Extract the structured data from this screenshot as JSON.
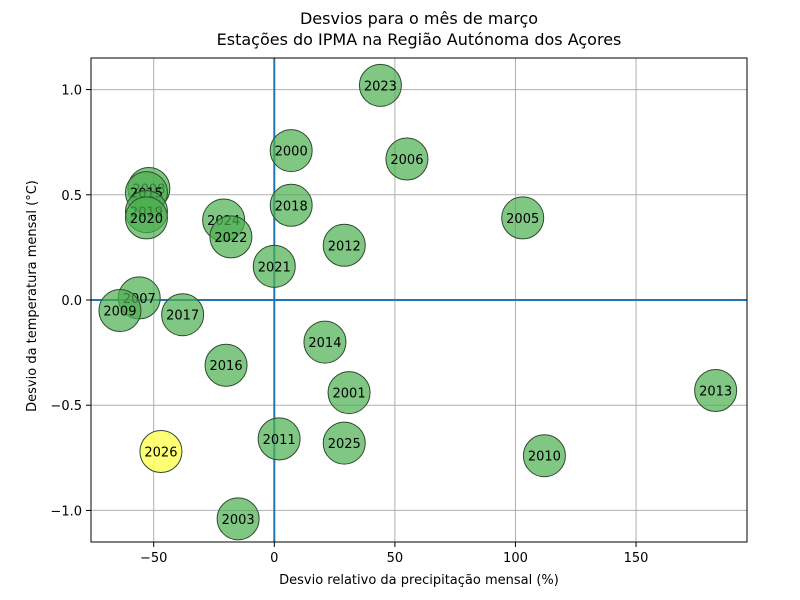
{
  "chart_data": {
    "type": "scatter",
    "title": "Desvios para o mês de março",
    "subtitle": "Estações do IPMA na Região Autónoma dos Açores",
    "xlabel": "Desvio relativo da precipitação mensal (%)",
    "ylabel": "Desvio da temperatura mensal (°C)",
    "xlim": [
      -76,
      196
    ],
    "ylim": [
      -1.15,
      1.15
    ],
    "xticks": [
      -50,
      0,
      50,
      100,
      150
    ],
    "xtick_labels": [
      "−50",
      "0",
      "50",
      "100",
      "150"
    ],
    "yticks": [
      -1.0,
      -0.5,
      0.0,
      0.5,
      1.0
    ],
    "ytick_labels": [
      "−1.0",
      "−0.5",
      "0.0",
      "0.5",
      "1.0"
    ],
    "grid": true,
    "reference_lines": {
      "x": 0,
      "y": 0,
      "color": "#1f77b4"
    },
    "colors": {
      "default": "#4caf50",
      "highlight": "#ffff66",
      "edge": "#2e4a2e"
    },
    "points": [
      {
        "label": "2023",
        "x": 44,
        "y": 1.02
      },
      {
        "label": "2000",
        "x": 7,
        "y": 0.71
      },
      {
        "label": "2006",
        "x": 55,
        "y": 0.67
      },
      {
        "label": "2008",
        "x": -52,
        "y": 0.53
      },
      {
        "label": "2015",
        "x": -53,
        "y": 0.51
      },
      {
        "label": "2018",
        "x": 7,
        "y": 0.45
      },
      {
        "label": "2019",
        "x": -53,
        "y": 0.42
      },
      {
        "label": "2020",
        "x": -53,
        "y": 0.39
      },
      {
        "label": "2005",
        "x": 103,
        "y": 0.39
      },
      {
        "label": "2024",
        "x": -21,
        "y": 0.38
      },
      {
        "label": "2022",
        "x": -18,
        "y": 0.3
      },
      {
        "label": "2012",
        "x": 29,
        "y": 0.26
      },
      {
        "label": "2021",
        "x": 0,
        "y": 0.16
      },
      {
        "label": "2007",
        "x": -56,
        "y": 0.01
      },
      {
        "label": "2009",
        "x": -64,
        "y": -0.05
      },
      {
        "label": "2017",
        "x": -38,
        "y": -0.07
      },
      {
        "label": "2014",
        "x": 21,
        "y": -0.2
      },
      {
        "label": "2016",
        "x": -20,
        "y": -0.31
      },
      {
        "label": "2001",
        "x": 31,
        "y": -0.44
      },
      {
        "label": "2013",
        "x": 183,
        "y": -0.43
      },
      {
        "label": "2011",
        "x": 2,
        "y": -0.66
      },
      {
        "label": "2025",
        "x": 29,
        "y": -0.68
      },
      {
        "label": "2026",
        "x": -47,
        "y": -0.72,
        "highlight": true
      },
      {
        "label": "2010",
        "x": 112,
        "y": -0.74
      },
      {
        "label": "2003",
        "x": -15,
        "y": -1.04
      }
    ]
  }
}
